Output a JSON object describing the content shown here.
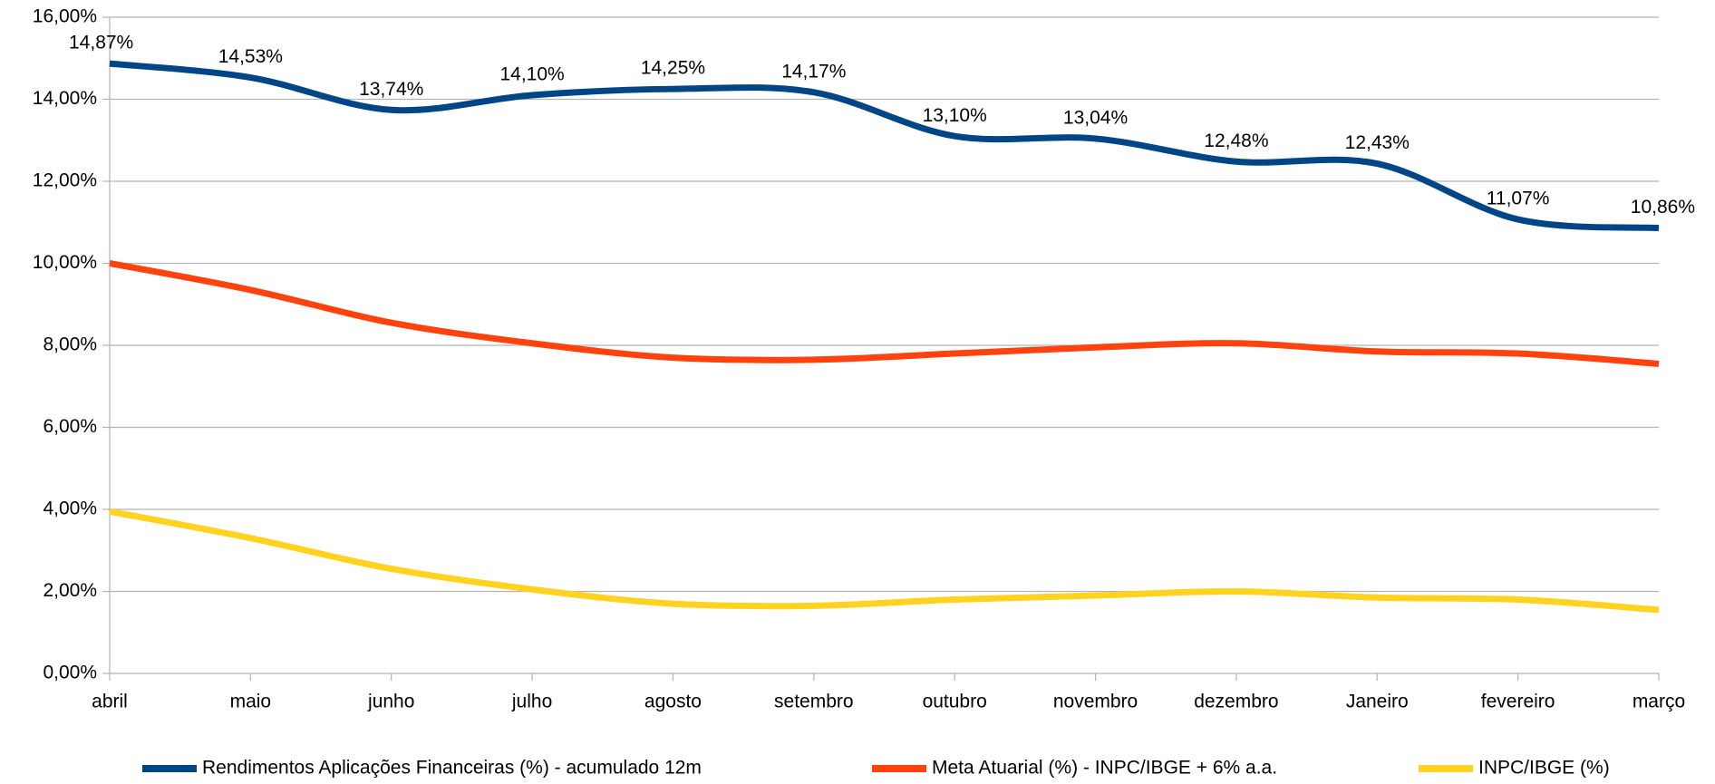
{
  "chart_data": {
    "type": "line",
    "categories": [
      "abril",
      "maio",
      "junho",
      "julho",
      "agosto",
      "setembro",
      "outubro",
      "novembro",
      "dezembro",
      "Janeiro",
      "fevereiro",
      "março"
    ],
    "series": [
      {
        "name": "Rendimentos Aplicações Financeiras (%) - acumulado 12m",
        "color": "#004586",
        "values": [
          14.87,
          14.53,
          13.74,
          14.1,
          14.25,
          14.17,
          13.1,
          13.04,
          12.48,
          12.43,
          11.07,
          10.86
        ],
        "value_labels": [
          "14,87%",
          "14,53%",
          "13,74%",
          "14,10%",
          "14,25%",
          "14,17%",
          "13,10%",
          "13,04%",
          "12,48%",
          "12,43%",
          "11,07%",
          "10,86%"
        ]
      },
      {
        "name": "Meta Atuarial (%) - INPC/IBGE + 6% a.a.",
        "color": "#ff420e",
        "values": [
          10.0,
          9.35,
          8.55,
          8.05,
          7.7,
          7.65,
          7.8,
          7.95,
          8.05,
          7.85,
          7.8,
          7.55
        ]
      },
      {
        "name": "INPC/IBGE (%)",
        "color": "#ffd320",
        "values": [
          3.95,
          3.3,
          2.55,
          2.05,
          1.7,
          1.65,
          1.8,
          1.9,
          2.0,
          1.85,
          1.8,
          1.55
        ]
      }
    ],
    "ylim": [
      0,
      16
    ],
    "yticks": [
      {
        "value": 0,
        "label": "0,00%"
      },
      {
        "value": 2,
        "label": "2,00%"
      },
      {
        "value": 4,
        "label": "4,00%"
      },
      {
        "value": 6,
        "label": "6,00%"
      },
      {
        "value": 8,
        "label": "8,00%"
      },
      {
        "value": 10,
        "label": "10,00%"
      },
      {
        "value": 12,
        "label": "12,00%"
      },
      {
        "value": 14,
        "label": "14,00%"
      },
      {
        "value": 16,
        "label": "16,00%"
      }
    ],
    "grid": true,
    "legend": "bottom"
  }
}
